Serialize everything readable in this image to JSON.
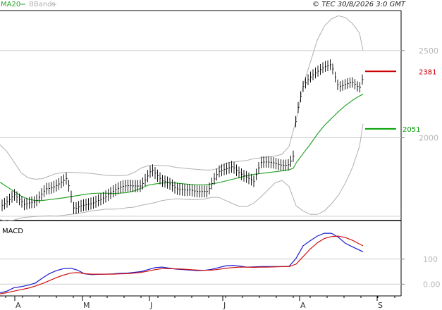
{
  "header": {
    "legend_ma": "MA20",
    "legend_bb": "BBands",
    "copyright": "© TEC 30/8/2026 3:0 GMT",
    "ma_color": "#2aa52a",
    "bb_color": "#b0b0b0"
  },
  "chart_data": [
    {
      "type": "line",
      "panel": "price",
      "title": "",
      "xlabel": "",
      "ylabel": "",
      "x_ticks": [
        "A",
        "M",
        "J",
        "J",
        "A",
        "S"
      ],
      "y_ticks": [
        "2500",
        "2000"
      ],
      "ylim": [
        1525,
        2730
      ],
      "grid": true,
      "levels": [
        {
          "label": "2381",
          "value": 2381,
          "color": "#cc0000"
        },
        {
          "label": "2051",
          "value": 2051,
          "color": "#00a000"
        }
      ],
      "series": [
        {
          "name": "MA20",
          "color": "#2aa52a",
          "x": [
            0,
            10,
            20,
            30,
            40,
            50,
            60,
            70,
            80,
            90,
            100,
            110,
            120,
            130,
            140,
            150,
            160,
            170,
            180,
            190,
            200,
            210,
            220,
            230,
            240,
            250,
            260,
            270,
            280,
            290,
            300,
            310,
            320,
            330,
            340,
            350,
            360,
            370,
            380,
            390,
            400,
            410,
            416,
            420,
            430,
            440,
            450,
            460,
            470,
            480,
            490,
            500,
            510,
            515
          ],
          "values": [
            1745,
            1718,
            1692,
            1665,
            1648,
            1640,
            1640,
            1645,
            1650,
            1655,
            1662,
            1668,
            1675,
            1680,
            1682,
            1682,
            1680,
            1682,
            1685,
            1695,
            1710,
            1728,
            1735,
            1740,
            1742,
            1740,
            1736,
            1732,
            1730,
            1730,
            1735,
            1742,
            1752,
            1762,
            1772,
            1782,
            1790,
            1795,
            1800,
            1805,
            1810,
            1816,
            1825,
            1855,
            1910,
            1962,
            2020,
            2070,
            2110,
            2150,
            2185,
            2215,
            2240,
            2250
          ]
        },
        {
          "name": "BBands upper",
          "color": "#b0b0b0",
          "x": [
            0,
            10,
            20,
            30,
            40,
            50,
            60,
            70,
            80,
            90,
            100,
            110,
            120,
            130,
            140,
            150,
            160,
            170,
            180,
            190,
            200,
            210,
            220,
            230,
            240,
            250,
            260,
            270,
            280,
            290,
            300,
            310,
            320,
            330,
            340,
            350,
            360,
            370,
            380,
            390,
            400,
            410,
            420,
            430,
            440,
            450,
            460,
            470,
            480,
            490,
            500,
            510,
            515
          ],
          "values": [
            1960,
            1920,
            1860,
            1800,
            1770,
            1762,
            1765,
            1780,
            1795,
            1800,
            1802,
            1800,
            1798,
            1795,
            1790,
            1785,
            1782,
            1782,
            1785,
            1800,
            1826,
            1840,
            1842,
            1840,
            1838,
            1830,
            1826,
            1822,
            1818,
            1815,
            1815,
            1825,
            1852,
            1862,
            1865,
            1870,
            1880,
            1885,
            1890,
            1895,
            1905,
            1950,
            2100,
            2300,
            2430,
            2560,
            2640,
            2682,
            2700,
            2690,
            2655,
            2600,
            2500
          ]
        },
        {
          "name": "BBands lower",
          "color": "#b0b0b0",
          "x": [
            0,
            10,
            20,
            30,
            40,
            50,
            60,
            70,
            80,
            90,
            100,
            110,
            120,
            130,
            140,
            150,
            160,
            170,
            180,
            190,
            200,
            210,
            220,
            230,
            240,
            250,
            260,
            270,
            280,
            290,
            300,
            310,
            320,
            330,
            340,
            350,
            360,
            370,
            380,
            390,
            400,
            410,
            420,
            430,
            440,
            450,
            460,
            470,
            480,
            490,
            500,
            510,
            515
          ],
          "values": [
            1530,
            1522,
            1528,
            1540,
            1545,
            1548,
            1550,
            1552,
            1550,
            1555,
            1560,
            1565,
            1572,
            1580,
            1585,
            1590,
            1590,
            1592,
            1598,
            1602,
            1612,
            1620,
            1628,
            1640,
            1645,
            1650,
            1648,
            1645,
            1645,
            1648,
            1658,
            1658,
            1640,
            1622,
            1605,
            1605,
            1625,
            1660,
            1700,
            1740,
            1755,
            1720,
            1610,
            1580,
            1560,
            1560,
            1580,
            1620,
            1670,
            1740,
            1830,
            1950,
            2080
          ]
        }
      ]
    },
    {
      "type": "line",
      "panel": "macd",
      "title": "MACD",
      "y_ticks": [
        "100",
        "0.00"
      ],
      "ylim": [
        -47,
        240
      ],
      "series": [
        {
          "name": "MACD",
          "color": "#1a1ad0",
          "x": [
            0,
            10,
            20,
            30,
            40,
            50,
            60,
            70,
            80,
            90,
            100,
            110,
            120,
            130,
            140,
            150,
            160,
            170,
            180,
            190,
            200,
            210,
            220,
            230,
            240,
            250,
            260,
            270,
            280,
            290,
            300,
            310,
            320,
            330,
            340,
            350,
            360,
            370,
            380,
            390,
            400,
            410,
            420,
            430,
            440,
            450,
            460,
            470,
            480,
            490,
            500,
            515
          ],
          "values": [
            -35,
            -28,
            -14,
            -10,
            -4,
            4,
            24,
            42,
            54,
            62,
            64,
            56,
            41,
            38,
            39,
            40,
            41,
            43,
            44,
            47,
            50,
            58,
            66,
            68,
            64,
            60,
            58,
            56,
            54,
            55,
            59,
            66,
            73,
            75,
            72,
            68,
            69,
            70,
            70,
            70,
            70,
            71,
            103,
            153,
            173,
            192,
            203,
            203,
            187,
            163,
            149,
            129
          ]
        },
        {
          "name": "Signal",
          "color": "#d01010",
          "x": [
            0,
            10,
            20,
            30,
            40,
            50,
            60,
            70,
            80,
            90,
            100,
            110,
            120,
            130,
            140,
            150,
            160,
            170,
            180,
            190,
            200,
            210,
            220,
            230,
            240,
            250,
            260,
            270,
            280,
            290,
            300,
            310,
            320,
            330,
            340,
            350,
            360,
            370,
            380,
            390,
            400,
            410,
            420,
            430,
            440,
            450,
            460,
            470,
            480,
            490,
            500,
            515
          ],
          "values": [
            -39,
            -34,
            -28,
            -22,
            -16,
            -8,
            2,
            14,
            26,
            36,
            44,
            46,
            42,
            40,
            40,
            40,
            40,
            41,
            42,
            44,
            47,
            52,
            58,
            62,
            62,
            61,
            60,
            58,
            56,
            55,
            56,
            59,
            63,
            66,
            68,
            68,
            67,
            68,
            68,
            69,
            70,
            70,
            80,
            110,
            140,
            165,
            182,
            190,
            192,
            186,
            175,
            153
          ]
        }
      ]
    }
  ]
}
